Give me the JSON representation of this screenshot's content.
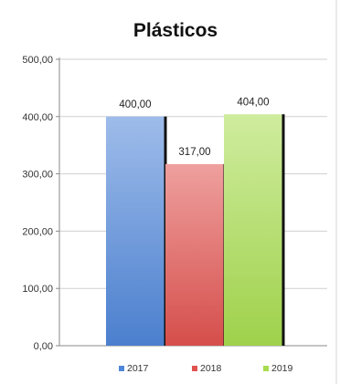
{
  "chart_data": {
    "type": "bar",
    "title": "Plásticos",
    "xlabel": "",
    "ylabel": "",
    "ylim": [
      0,
      500
    ],
    "y_ticks": [
      0,
      100,
      200,
      300,
      400,
      500
    ],
    "y_tick_labels": [
      "0,00",
      "100,00",
      "200,00",
      "300,00",
      "400,00",
      "500,00"
    ],
    "grid": true,
    "legend_position": "bottom",
    "series": [
      {
        "name": "2017",
        "value": 400,
        "label": "400,00",
        "color": "#4f86d9"
      },
      {
        "name": "2018",
        "value": 317,
        "label": "317,00",
        "color": "#e0524f"
      },
      {
        "name": "2019",
        "value": 404,
        "label": "404,00",
        "color": "#a7dc4f"
      }
    ]
  }
}
